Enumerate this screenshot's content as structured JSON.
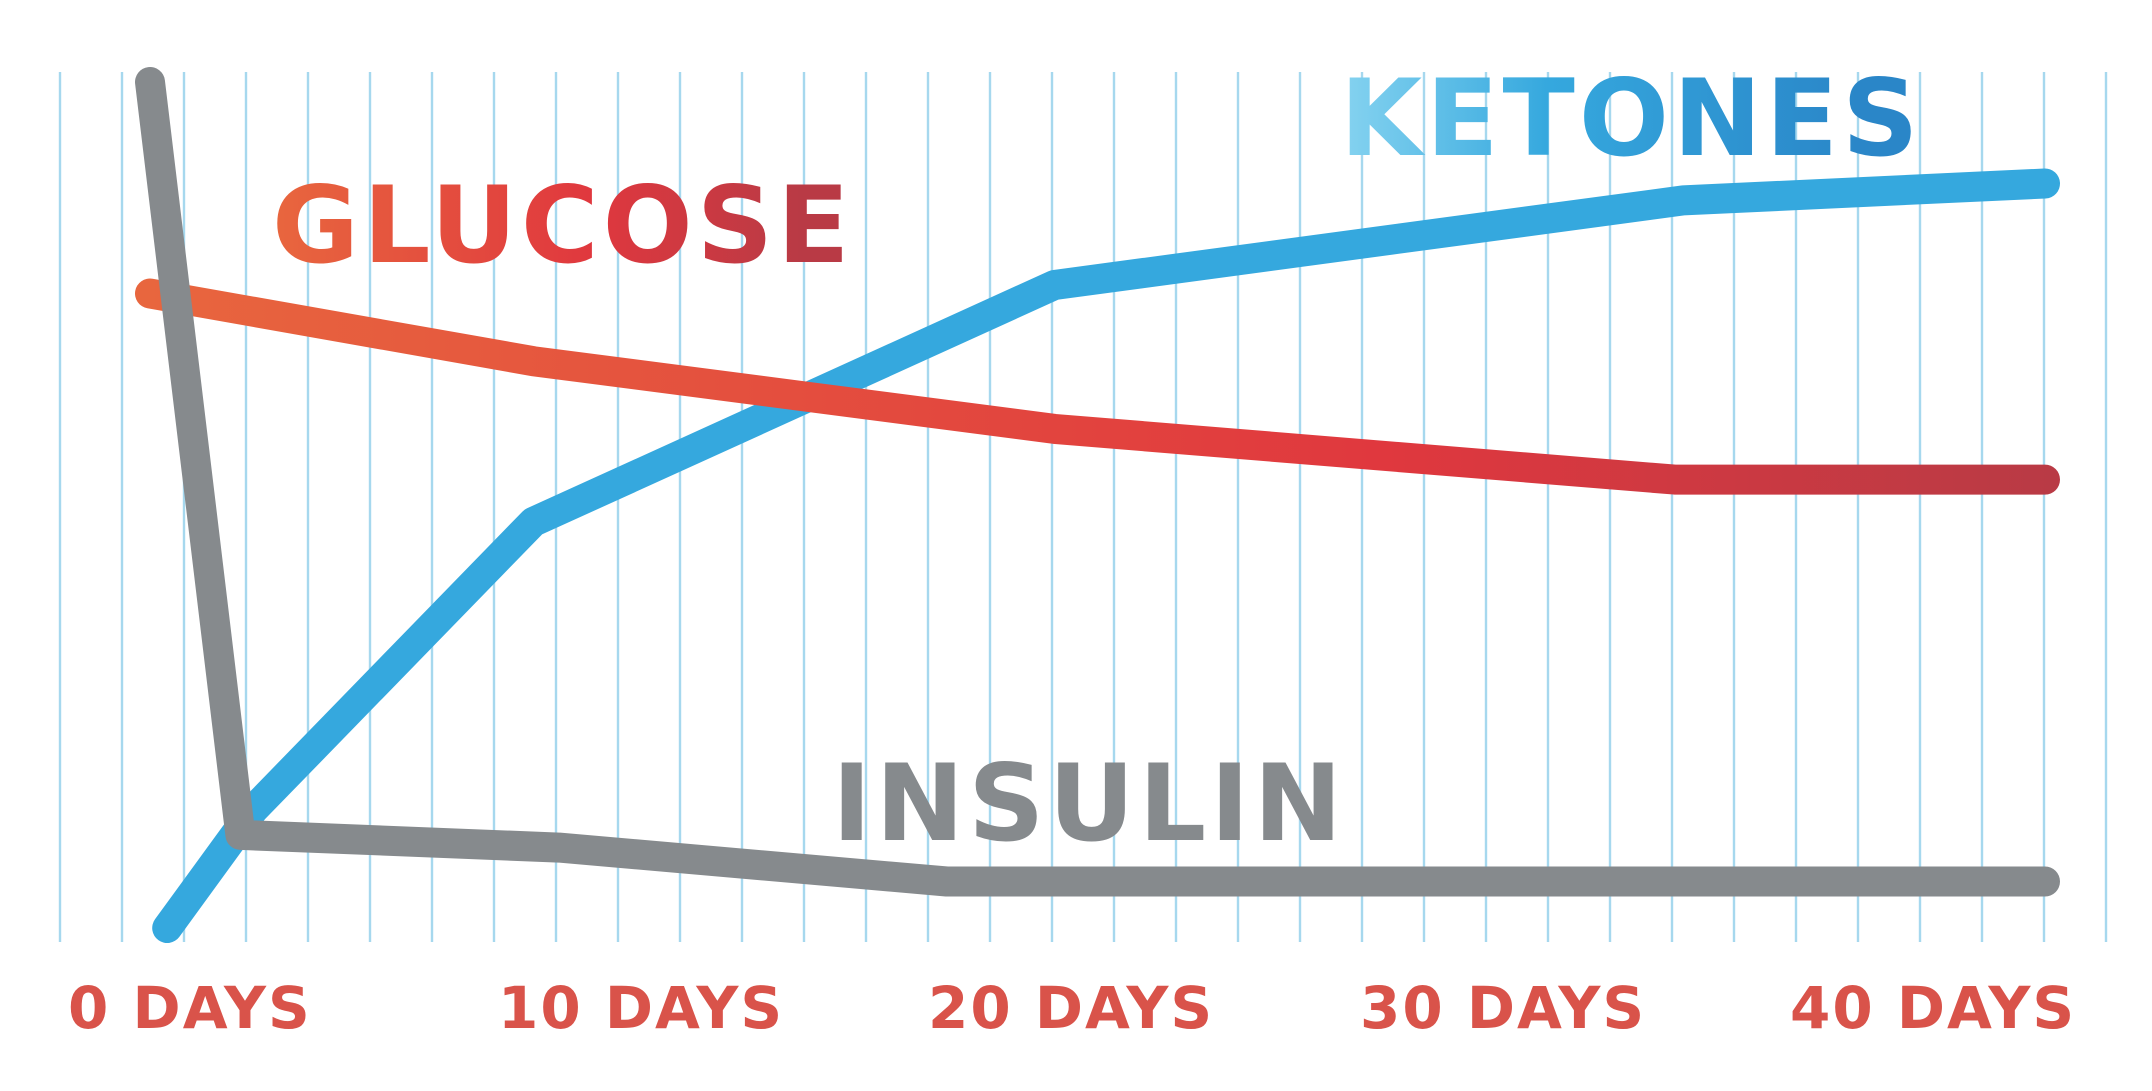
{
  "chart_data": {
    "type": "line",
    "title": "",
    "xlabel": "",
    "ylabel": "",
    "x_unit": "days",
    "xlim": [
      0,
      44
    ],
    "ylim": [
      0,
      100
    ],
    "grid": "vertical",
    "ticks": [
      {
        "value": 0,
        "label": "0 DAYS"
      },
      {
        "value": 10,
        "label": "10 DAYS"
      },
      {
        "value": 20,
        "label": "20 DAYS"
      },
      {
        "value": 30,
        "label": "30 DAYS"
      },
      {
        "value": 40,
        "label": "40 DAYS"
      }
    ],
    "series": [
      {
        "name": "KETONES",
        "color": "#35a8de",
        "x": [
          0.4,
          2.4,
          8.9,
          21.0,
          35.6,
          44.0
        ],
        "y": [
          0,
          14,
          48,
          76,
          86,
          88
        ]
      },
      {
        "name": "GLUCOSE",
        "color": "#e34a3f",
        "x": [
          0,
          8.9,
          21.0,
          35.4,
          44.0
        ],
        "y": [
          75,
          67,
          59,
          53,
          53
        ]
      },
      {
        "name": "INSULIN",
        "color": "#868a8d",
        "x": [
          0,
          2.1,
          9.5,
          18.5,
          44.0
        ],
        "y": [
          100,
          11,
          9.5,
          5.5,
          5.5
        ]
      }
    ]
  },
  "colors": {
    "grid": "#a6d8ee",
    "tick_label": "#d9534a",
    "glucose_gradient": [
      "#e8663e",
      "#e0383e",
      "#b93a45"
    ],
    "ketones_label_gradient": [
      "#86d3f0",
      "#35a8de",
      "#2a86c8"
    ]
  }
}
